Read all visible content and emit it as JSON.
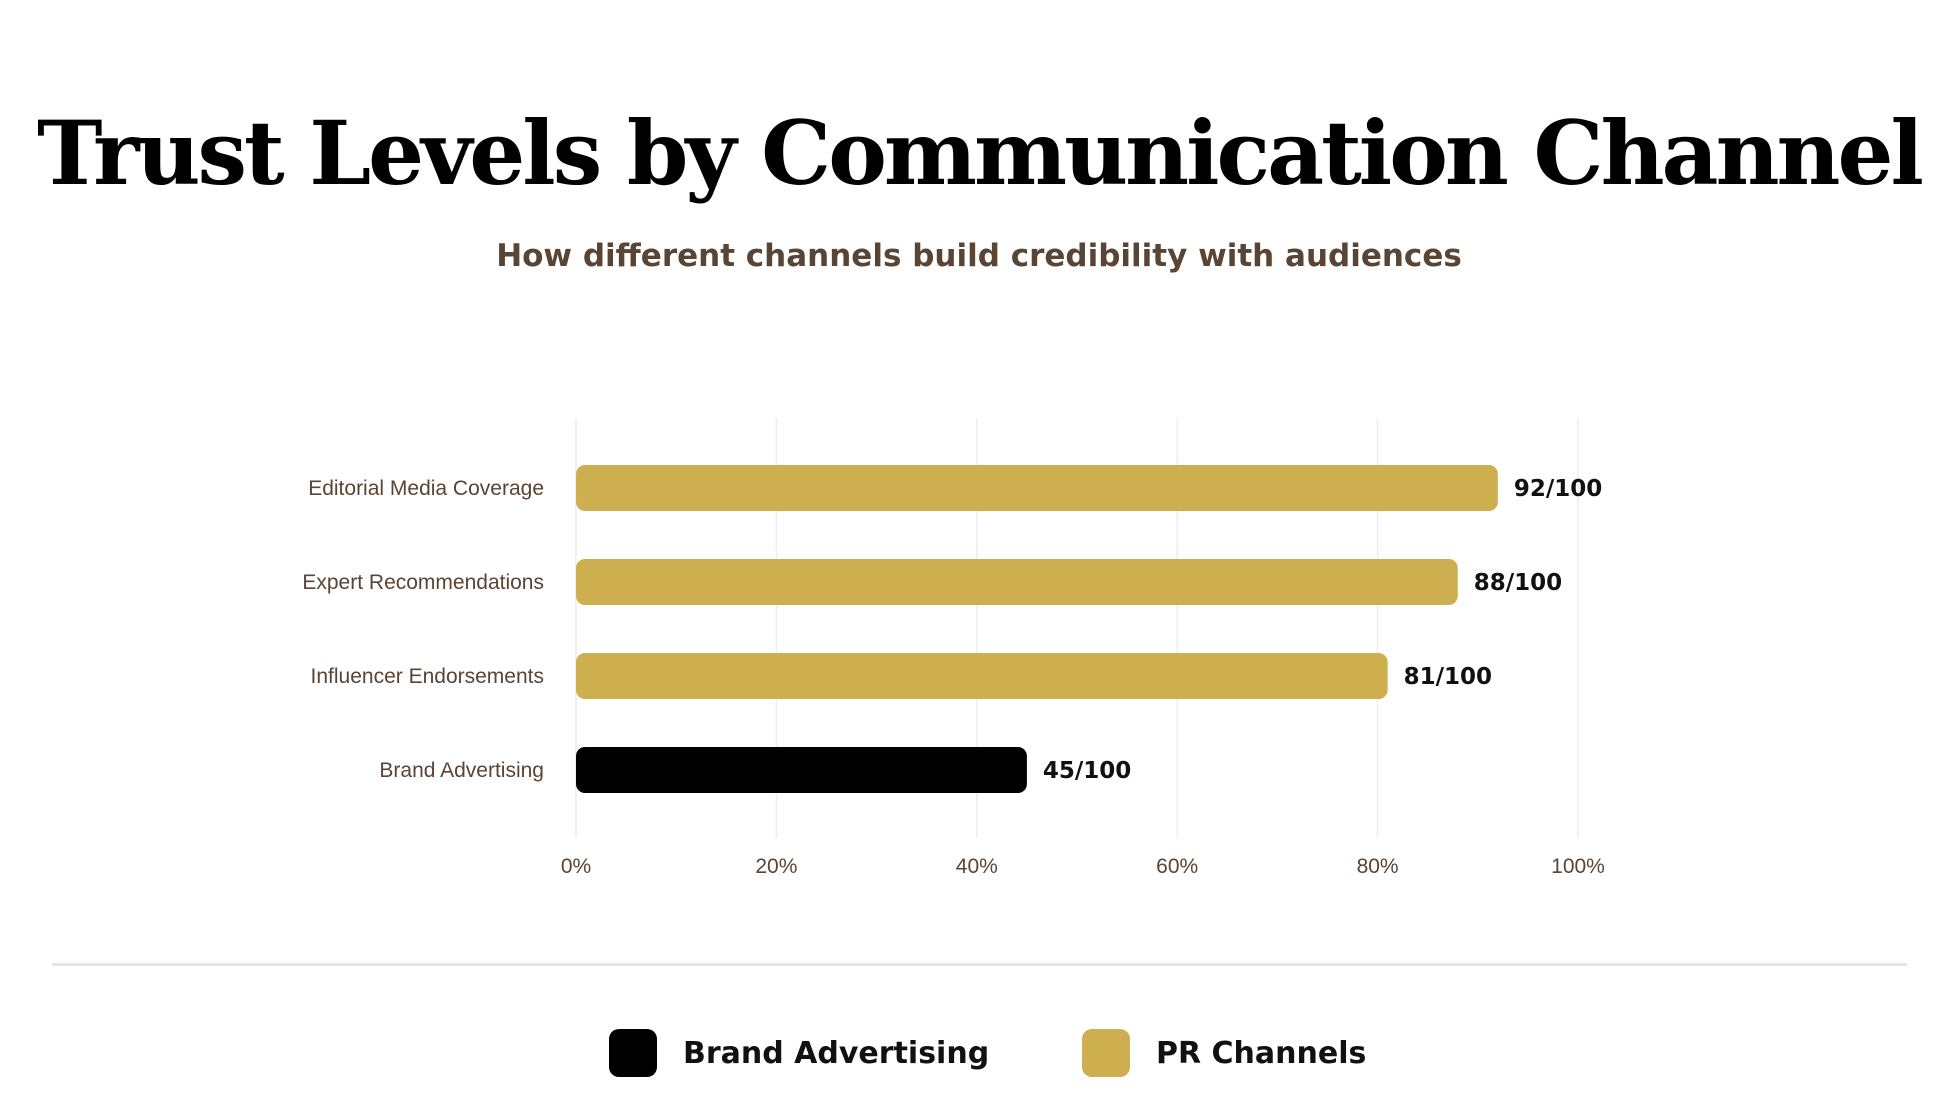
{
  "title": "Trust Levels by Communication Channel",
  "subtitle": "How different channels build credibility with audiences",
  "colors": {
    "pr": "#ceaf4f",
    "brand": "#000000",
    "label_text": "#5a4433",
    "grid": "#eeeeee"
  },
  "chart_data": {
    "type": "bar",
    "orientation": "horizontal",
    "categories": [
      "Editorial Media Coverage",
      "Expert Recommendations",
      "Influencer Endorsements",
      "Brand Advertising"
    ],
    "values": [
      92,
      88,
      81,
      45
    ],
    "value_labels": [
      "92/100",
      "88/100",
      "81/100",
      "45/100"
    ],
    "groups": [
      "PR Channels",
      "PR Channels",
      "PR Channels",
      "Brand Advertising"
    ],
    "x_ticks": [
      "0%",
      "20%",
      "40%",
      "60%",
      "80%",
      "100%"
    ],
    "xlim": [
      0,
      100
    ],
    "grid": true,
    "legend_position": "bottom"
  },
  "legend": [
    {
      "label": "Brand Advertising",
      "color": "#000000"
    },
    {
      "label": "PR Channels",
      "color": "#ceaf4f"
    }
  ]
}
